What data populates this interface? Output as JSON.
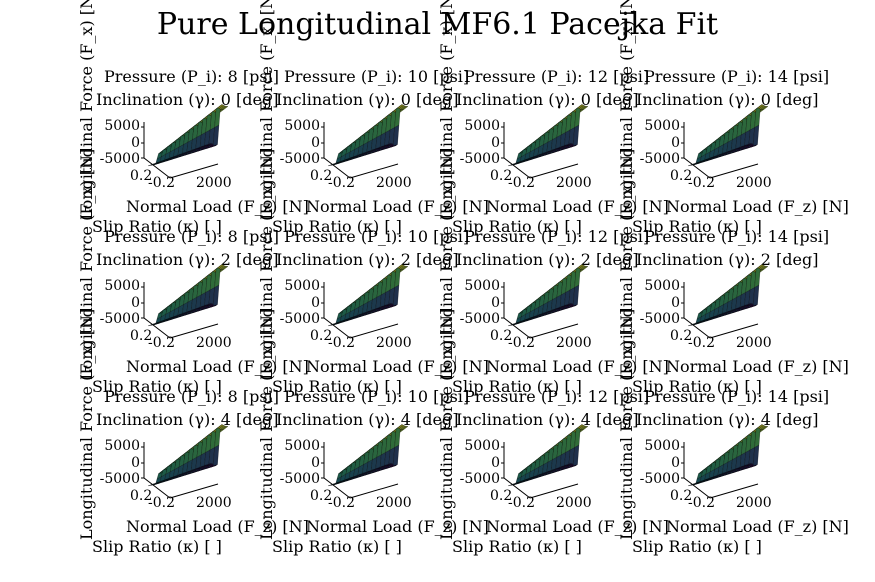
{
  "title": "Pure Longitudinal MF6.1 Pacejka Fit",
  "chart_data": {
    "type": "surface",
    "title": "Pure Longitudinal MF6.1 Pacejka Fit",
    "xlabel": "Normal Load (F_z) [N]",
    "ylabel": "Slip Ratio (κ) [ ]",
    "zlabel": "Longitudinal Force (F_x) [N]",
    "x_ticks": [
      "0",
      "2000"
    ],
    "y_ticks": [
      "-0.2",
      "0.2"
    ],
    "z_ticks": [
      "5000",
      "0",
      "-5000"
    ],
    "xlim": [
      0,
      2500
    ],
    "ylim": [
      -0.25,
      0.25
    ],
    "zlim": [
      -6000,
      6000
    ],
    "colormap": "viridis",
    "panels": [
      {
        "pressure": "Pressure (P_i): 8 [psi]",
        "inclination": "Inclination (γ): 0 [deg]"
      },
      {
        "pressure": "Pressure (P_i): 10 [psi]",
        "inclination": "Inclination (γ): 0 [deg]"
      },
      {
        "pressure": "Pressure (P_i): 12 [psi]",
        "inclination": "Inclination (γ): 0 [deg]"
      },
      {
        "pressure": "Pressure (P_i): 14 [psi]",
        "inclination": "Inclination (γ): 0 [deg]"
      },
      {
        "pressure": "Pressure (P_i): 8 [psi]",
        "inclination": "Inclination (γ): 2 [deg]"
      },
      {
        "pressure": "Pressure (P_i): 10 [psi]",
        "inclination": "Inclination (γ): 2 [deg]"
      },
      {
        "pressure": "Pressure (P_i): 12 [psi]",
        "inclination": "Inclination (γ): 2 [deg]"
      },
      {
        "pressure": "Pressure (P_i): 14 [psi]",
        "inclination": "Inclination (γ): 2 [deg]"
      },
      {
        "pressure": "Pressure (P_i): 8 [psi]",
        "inclination": "Inclination (γ): 4 [deg]"
      },
      {
        "pressure": "Pressure (P_i): 10 [psi]",
        "inclination": "Inclination (γ): 4 [deg]"
      },
      {
        "pressure": "Pressure (P_i): 12 [psi]",
        "inclination": "Inclination (γ): 4 [deg]"
      },
      {
        "pressure": "Pressure (P_i): 14 [psi]",
        "inclination": "Inclination (γ): 4 [deg]"
      }
    ]
  }
}
